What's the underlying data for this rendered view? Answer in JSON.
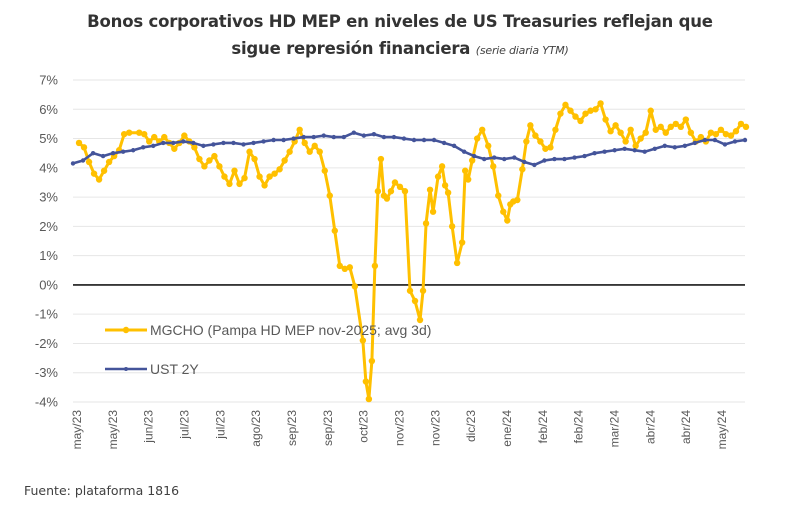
{
  "title": {
    "line1": "Bonos corporativos HD MEP en niveles de US Treasuries reflejan que",
    "line2": "sigue represión financiera",
    "line2_sub": "(serie diaria YTM)"
  },
  "footer": "Fuente: plataforma 1816",
  "colors": {
    "mgcho": "#FFC000",
    "ust": "#44549A",
    "grid": "#E6E6E6",
    "zero": "#1A1A1A"
  },
  "chart_data": {
    "type": "line",
    "title": "Bonos corporativos HD MEP en niveles de US Treasuries reflejan que sigue represión financiera (serie diaria YTM)",
    "xlabel": "",
    "ylabel": "",
    "ylim": [
      -4,
      7
    ],
    "yticks": [
      7,
      6,
      5,
      4,
      3,
      2,
      1,
      0,
      -1,
      -2,
      -3,
      -4
    ],
    "ytick_labels": [
      "7%",
      "6%",
      "5%",
      "4%",
      "3%",
      "2%",
      "1%",
      "0%",
      "-1%",
      "-2%",
      "-3%",
      "-4%"
    ],
    "xlim": [
      0,
      134
    ],
    "x_tick_labels": [
      "may/23",
      "may/23",
      "jun/23",
      "jul/23",
      "jul/23",
      "ago/23",
      "sep/23",
      "sep/23",
      "oct/23",
      "nov/23",
      "nov/23",
      "dic/23",
      "ene/24",
      "feb/24",
      "feb/24",
      "mar/24",
      "abr/24",
      "abr/24",
      "may/24"
    ],
    "grid": true,
    "legend_position": "bottom-left inside",
    "series": [
      {
        "name": "MGCHO (Pampa HD MEP nov-2025; avg 3d)",
        "color": "#FFC000",
        "x": [
          1.2,
          2.2,
          3.2,
          4.2,
          5.2,
          6.2,
          7.2,
          8.2,
          9.2,
          10.2,
          11.2,
          13.2,
          14.2,
          15.2,
          16.2,
          17.2,
          18.2,
          19.2,
          20.2,
          21.2,
          22.2,
          23.2,
          24.2,
          25.2,
          26.2,
          27.2,
          28.2,
          29.2,
          30.2,
          31.2,
          32.2,
          33.2,
          34.2,
          35.2,
          36.2,
          37.2,
          38.2,
          39.2,
          40.2,
          41.2,
          42.2,
          43.2,
          44.2,
          45.2,
          46.2,
          47.2,
          48.2,
          49.2,
          50.2,
          51.2,
          52.2,
          53.2,
          54.2,
          55.2,
          56.2,
          57.8,
          58.4,
          59.0,
          59.6,
          60.2,
          60.8,
          61.4,
          62.0,
          62.6,
          63.4,
          64.2,
          65.2,
          66.2,
          67.2,
          68.2,
          69.2,
          69.8,
          70.4,
          71.2,
          71.8,
          72.8,
          73.6,
          74.2,
          74.8,
          75.6,
          76.6,
          77.6,
          78.2,
          78.8,
          79.6,
          80.6,
          81.6,
          82.8,
          83.8,
          84.8,
          85.8,
          86.6,
          87.2,
          87.8,
          88.6,
          89.6,
          90.4,
          91.2,
          92.2,
          93.2,
          94.2,
          95.2,
          96.2,
          97.2,
          98.2,
          99.2,
          100.2,
          101.2,
          102.2,
          103.2,
          104.2,
          105.2,
          106.2,
          107.2,
          108.2,
          109.2,
          110.2,
          111.2,
          112.2,
          113.2,
          114.2,
          115.2,
          116.2,
          117.2,
          118.2,
          119.2,
          120.2,
          121.2,
          122.2,
          123.2,
          124.2,
          125.2,
          126.2,
          127.2,
          128.2,
          129.2,
          130.2,
          131.2,
          132.2,
          133.2,
          134.2
        ],
        "values": [
          4.85,
          4.7,
          4.2,
          3.8,
          3.6,
          3.9,
          4.2,
          4.4,
          4.6,
          5.15,
          5.2,
          5.2,
          5.15,
          4.9,
          5.05,
          4.9,
          5.05,
          4.85,
          4.65,
          4.85,
          5.1,
          4.9,
          4.7,
          4.3,
          4.05,
          4.25,
          4.4,
          4.05,
          3.7,
          3.45,
          3.9,
          3.45,
          3.65,
          4.55,
          4.3,
          3.7,
          3.4,
          3.7,
          3.8,
          3.95,
          4.25,
          4.55,
          4.9,
          5.3,
          4.85,
          4.55,
          4.75,
          4.55,
          3.9,
          3.05,
          1.85,
          0.65,
          0.55,
          0.6,
          -0.05,
          -1.9,
          -3.3,
          -3.9,
          -2.6,
          0.65,
          3.2,
          4.3,
          3.05,
          2.95,
          3.2,
          3.5,
          3.35,
          3.2,
          -0.2,
          -0.55,
          -1.2,
          -0.2,
          2.1,
          3.25,
          2.5,
          3.7,
          4.05,
          3.4,
          3.15,
          2.0,
          0.75,
          1.45,
          3.9,
          3.6,
          4.25,
          5.0,
          5.3,
          4.75,
          4.05,
          3.05,
          2.5,
          2.2,
          2.75,
          2.85,
          2.9,
          3.95,
          4.9,
          5.45,
          5.1,
          4.9,
          4.65,
          4.7,
          5.3,
          5.85,
          6.15,
          5.95,
          5.75,
          5.6,
          5.85,
          5.95,
          6.0,
          6.2,
          5.65,
          5.25,
          5.45,
          5.2,
          4.9,
          5.3,
          4.75,
          5.0,
          5.2,
          5.95,
          5.3,
          5.4,
          5.2,
          5.4,
          5.5,
          5.4,
          5.65,
          5.2,
          4.9,
          5.05,
          4.9,
          5.2,
          5.15,
          5.3,
          5.15,
          5.1,
          5.25,
          5.5,
          5.4
        ]
      },
      {
        "name": "UST 2Y",
        "color": "#44549A",
        "x": [
          0,
          2,
          4,
          6,
          8,
          10,
          12,
          14,
          16,
          18,
          20,
          22,
          24,
          26,
          28,
          30,
          32,
          34,
          36,
          38,
          40,
          42,
          44,
          46,
          48,
          50,
          52,
          54,
          56,
          58,
          60,
          62,
          64,
          66,
          68,
          70,
          72,
          74,
          76,
          78,
          80,
          82,
          84,
          86,
          88,
          90,
          92,
          94,
          96,
          98,
          100,
          102,
          104,
          106,
          108,
          110,
          112,
          114,
          116,
          118,
          120,
          122,
          124,
          126,
          128,
          130,
          132,
          134
        ],
        "values": [
          4.15,
          4.25,
          4.5,
          4.4,
          4.5,
          4.55,
          4.6,
          4.7,
          4.75,
          4.85,
          4.85,
          4.9,
          4.85,
          4.75,
          4.8,
          4.85,
          4.85,
          4.8,
          4.85,
          4.9,
          4.95,
          4.95,
          5.0,
          5.05,
          5.05,
          5.1,
          5.05,
          5.05,
          5.2,
          5.1,
          5.15,
          5.05,
          5.05,
          5.0,
          4.95,
          4.95,
          4.95,
          4.85,
          4.75,
          4.55,
          4.4,
          4.3,
          4.35,
          4.3,
          4.35,
          4.2,
          4.1,
          4.25,
          4.3,
          4.3,
          4.35,
          4.4,
          4.5,
          4.55,
          4.6,
          4.65,
          4.6,
          4.55,
          4.65,
          4.75,
          4.7,
          4.75,
          4.85,
          4.95,
          4.95,
          4.8,
          4.9,
          4.95
        ]
      }
    ]
  }
}
